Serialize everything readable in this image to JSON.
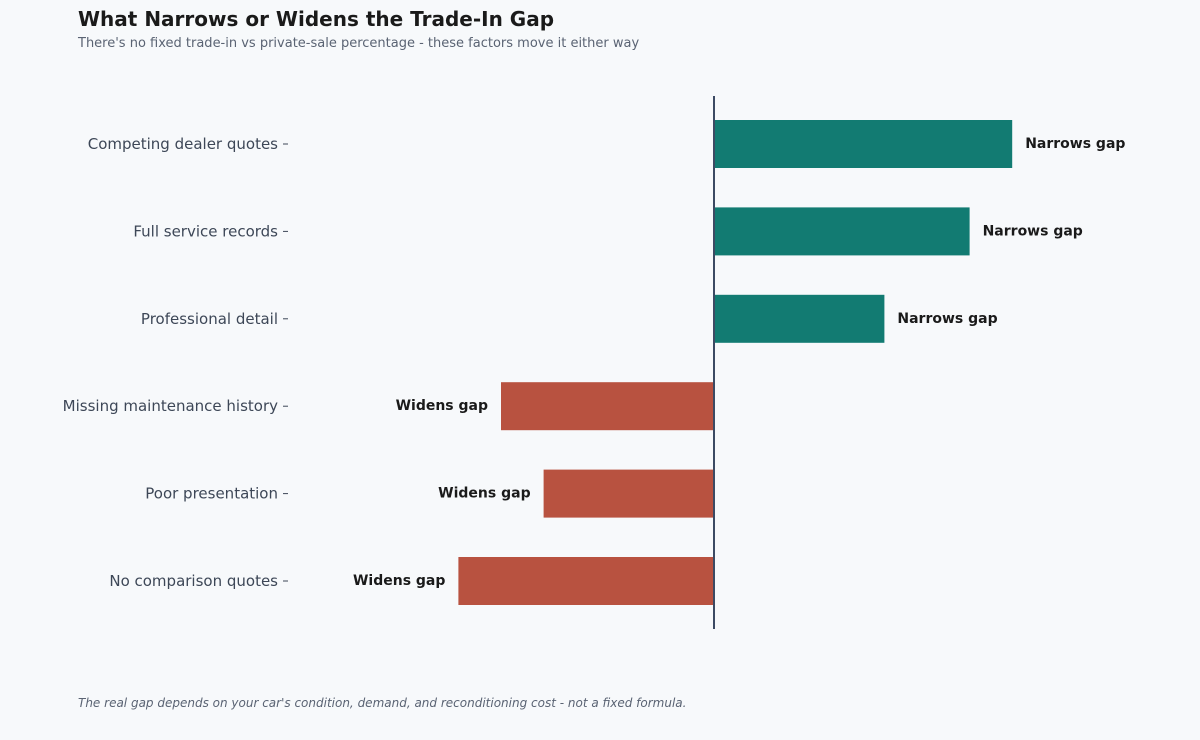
{
  "title": "What Narrows or Widens the Trade-In Gap",
  "subtitle": "There's no fixed trade-in vs private-sale percentage - these factors move it either way",
  "footnote": "The real gap depends on your car's condition, demand, and reconditioning cost - not a fixed formula.",
  "colors": {
    "narrows": "#127b72",
    "widens": "#b85240",
    "axis": "#3c4a63",
    "background": "#f7f9fb"
  },
  "chart_data": {
    "type": "bar",
    "orientation": "horizontal",
    "categories": [
      "Competing dealer quotes",
      "Full service records",
      "Professional detail",
      "Missing maintenance history",
      "Poor presentation",
      "No comparison quotes"
    ],
    "values": [
      7,
      6,
      4,
      -5,
      -4,
      -6
    ],
    "data_labels": [
      "Narrows gap",
      "Narrows gap",
      "Narrows gap",
      "Widens gap",
      "Widens gap",
      "Widens gap"
    ],
    "xlim": [
      -10,
      10
    ],
    "grid": false,
    "legend": "none"
  }
}
